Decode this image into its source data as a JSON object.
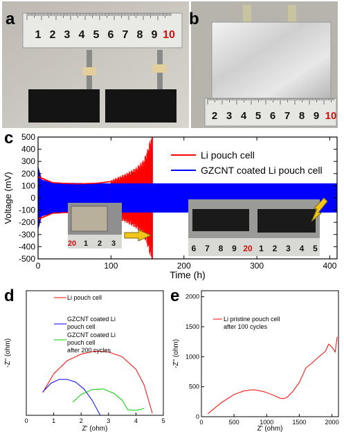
{
  "panels": {
    "a": {
      "label": "a",
      "ruler_numbers": [
        "1",
        "2",
        "3",
        "4",
        "5",
        "6",
        "7",
        "8",
        "9",
        "10"
      ]
    },
    "b": {
      "label": "b",
      "ruler_numbers": [
        "2",
        "3",
        "4",
        "5",
        "6",
        "7",
        "8",
        "9",
        "10"
      ]
    },
    "c": {
      "label": "c"
    },
    "d": {
      "label": "d"
    },
    "e": {
      "label": "e"
    }
  },
  "chart_data": [
    {
      "panel": "c",
      "type": "line",
      "xlabel": "Time (h)",
      "ylabel": "Voltage (mV)",
      "xlim": [
        0,
        410
      ],
      "ylim": [
        -500,
        500
      ],
      "xticks": [
        0,
        100,
        200,
        300,
        400
      ],
      "yticks": [
        -500,
        -400,
        -300,
        -200,
        -100,
        0,
        100,
        200,
        300,
        400,
        500
      ],
      "legend_placement": "top-right",
      "series": [
        {
          "name": "Li pouch cell",
          "color": "#ff0000",
          "x": [
            0,
            20,
            50,
            80,
            100,
            120,
            135,
            145,
            150,
            155,
            157
          ],
          "y_envelope": [
            180,
            130,
            120,
            125,
            140,
            190,
            240,
            300,
            380,
            480,
            500
          ]
        },
        {
          "name": "GZCNT coated Li pouch cell",
          "color": "#0000ff",
          "x": [
            0,
            5,
            20,
            100,
            200,
            300,
            410
          ],
          "y_envelope": [
            260,
            150,
            125,
            120,
            120,
            120,
            120
          ]
        }
      ],
      "inset_ruler_left": [
        "20",
        "1",
        "2",
        "3"
      ],
      "inset_ruler_right": [
        "6",
        "7",
        "8",
        "9",
        "20",
        "1",
        "2",
        "3",
        "4",
        "5"
      ]
    },
    {
      "panel": "d",
      "type": "line",
      "xlabel": "Z' (ohm)",
      "ylabel": "-Z'' (ohm)",
      "xlim": [
        0,
        5
      ],
      "ylim": [
        0,
        3.3
      ],
      "xticks": [
        0,
        1,
        2,
        3,
        4,
        5
      ],
      "yticks": [],
      "series": [
        {
          "name": "Li pouch cell",
          "color": "#ff0000",
          "x": [
            0.6,
            1.0,
            1.5,
            2.0,
            2.5,
            3.0,
            3.5,
            4.0,
            4.3,
            4.5,
            4.6
          ],
          "y": [
            0.6,
            1.1,
            1.45,
            1.62,
            1.7,
            1.68,
            1.55,
            1.22,
            0.8,
            0.3,
            0.05
          ]
        },
        {
          "name": "GZCNT coated Li pouch cell",
          "color": "#0000ff",
          "x": [
            0.6,
            0.9,
            1.2,
            1.5,
            1.8,
            2.1,
            2.4,
            2.7
          ],
          "y": [
            0.62,
            0.85,
            0.95,
            0.95,
            0.88,
            0.7,
            0.4,
            0.0
          ]
        },
        {
          "name": "GZCNT coated Li pouch cell after 200 cycles",
          "color": "#00cc00",
          "x": [
            1.7,
            2.0,
            2.4,
            2.8,
            3.2,
            3.5,
            3.7,
            4.0,
            4.3
          ],
          "y": [
            0.35,
            0.55,
            0.68,
            0.7,
            0.58,
            0.4,
            0.15,
            0.13,
            0.18
          ]
        }
      ],
      "legend": [
        "Li pouch cell",
        "GZCNT coated Li pouch cell",
        "GZCNT coated Li pouch cell after 200 cycles"
      ]
    },
    {
      "panel": "e",
      "type": "line",
      "xlabel": "Z' (ohm)",
      "ylabel": "-Z'' (ohm)",
      "xlim": [
        0,
        2100
      ],
      "ylim": [
        0,
        2100
      ],
      "xticks": [
        0,
        500,
        1000,
        1500,
        2000
      ],
      "yticks": [
        0,
        500,
        1000,
        1500,
        2000
      ],
      "series": [
        {
          "name": "Li pristine pouch cell after 100 cycles",
          "color": "#ff0000",
          "x": [
            100,
            300,
            500,
            650,
            800,
            950,
            1100,
            1200,
            1260,
            1320,
            1400,
            1500,
            1600,
            1700,
            1800,
            1900,
            1950,
            2000,
            2050,
            2080
          ],
          "y": [
            50,
            230,
            370,
            430,
            450,
            420,
            360,
            310,
            300,
            330,
            420,
            570,
            810,
            900,
            1000,
            1090,
            1210,
            1160,
            1080,
            1330
          ]
        }
      ],
      "legend": [
        "Li pristine pouch cell",
        "after 100 cycles"
      ]
    }
  ]
}
